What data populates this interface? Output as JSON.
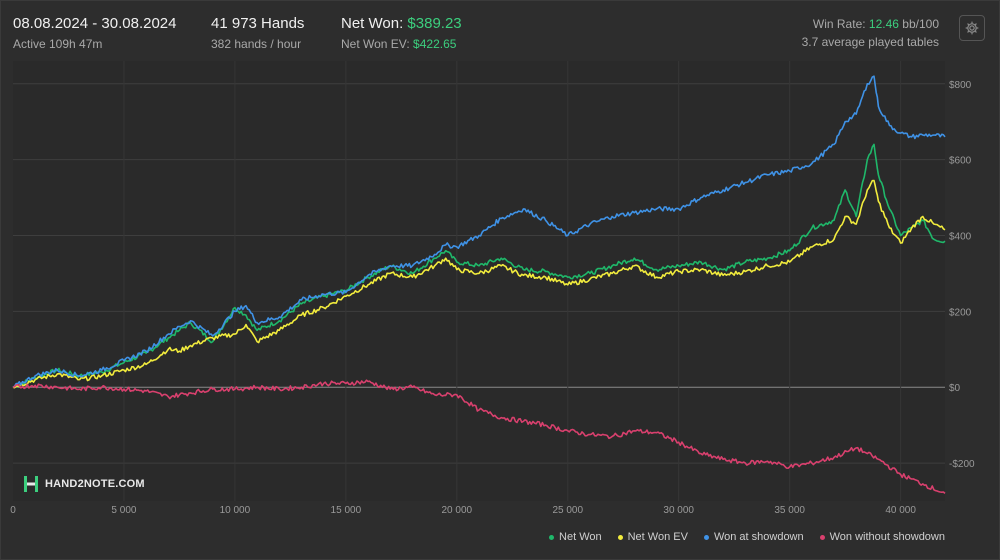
{
  "header": {
    "date_range": "08.08.2024 - 30.08.2024",
    "active": "Active 109h 47m",
    "hands": "41 973 Hands",
    "hands_per_hour": "382 hands / hour",
    "net_won_label": "Net Won:",
    "net_won_value": "$389.23",
    "net_won_ev_label": "Net Won  EV:",
    "net_won_ev_value": "$422.65",
    "win_rate_label": "Win Rate:",
    "win_rate_value": "12.46",
    "win_rate_unit": "bb/100",
    "tables": "3.7 average played tables"
  },
  "logo_text": "HAND2NOTE.COM",
  "icons": {
    "settings": "gear-icon",
    "logo": "hand2note-logo-icon"
  },
  "colors": {
    "background": "#2d2d2d",
    "net_won": "#1fb86a",
    "net_won_ev": "#f2ec3d",
    "won_showdown": "#3f92e6",
    "won_no_showdown": "#d9406e",
    "accent_green": "#3ccf7e"
  },
  "chart_data": {
    "type": "line",
    "title": "",
    "xlabel": "",
    "ylabel": "",
    "xlim": [
      0,
      42000
    ],
    "ylim": [
      -300,
      860
    ],
    "x_ticks": [
      0,
      5000,
      10000,
      15000,
      20000,
      25000,
      30000,
      35000,
      40000
    ],
    "x_tick_labels": [
      "0",
      "5 000",
      "10 000",
      "15 000",
      "20 000",
      "25 000",
      "30 000",
      "35 000",
      "40 000"
    ],
    "y_ticks": [
      -200,
      0,
      200,
      400,
      600,
      800
    ],
    "y_tick_labels": [
      "-$200",
      "$0",
      "$200",
      "$400",
      "$600",
      "$800"
    ],
    "grid": true,
    "legend_position": "bottom-right",
    "series": [
      {
        "name": "Net Won",
        "color": "#1fb86a",
        "x": [
          0,
          1000,
          2000,
          3000,
          4000,
          5000,
          6000,
          7000,
          7500,
          8000,
          9000,
          10000,
          10500,
          11000,
          12000,
          13000,
          14000,
          15000,
          16000,
          17000,
          18000,
          19000,
          19500,
          20000,
          21000,
          22000,
          23000,
          24000,
          25000,
          26000,
          27000,
          28000,
          29000,
          30000,
          31000,
          32000,
          33000,
          34000,
          35000,
          36000,
          37000,
          37500,
          38000,
          38500,
          38800,
          39000,
          39500,
          40000,
          40500,
          41000,
          41500,
          42000
        ],
        "y": [
          0,
          25,
          45,
          30,
          40,
          65,
          90,
          130,
          150,
          170,
          120,
          210,
          190,
          150,
          175,
          220,
          240,
          255,
          290,
          320,
          300,
          340,
          360,
          330,
          320,
          340,
          310,
          305,
          290,
          300,
          320,
          340,
          310,
          320,
          330,
          310,
          330,
          340,
          360,
          420,
          440,
          520,
          450,
          600,
          640,
          560,
          470,
          400,
          420,
          440,
          390,
          385
        ]
      },
      {
        "name": "Net Won  EV",
        "color": "#f2ec3d",
        "x": [
          0,
          1000,
          2000,
          3000,
          4000,
          5000,
          6000,
          7000,
          7500,
          8000,
          9000,
          10000,
          10500,
          11000,
          12000,
          13000,
          14000,
          15000,
          16000,
          17000,
          18000,
          19000,
          19500,
          20000,
          21000,
          22000,
          23000,
          24000,
          25000,
          26000,
          27000,
          28000,
          29000,
          30000,
          31000,
          32000,
          33000,
          34000,
          35000,
          36000,
          37000,
          37500,
          38000,
          38500,
          38800,
          39000,
          39500,
          40000,
          40500,
          41000,
          41500,
          42000
        ],
        "y": [
          0,
          20,
          35,
          20,
          30,
          45,
          60,
          100,
          95,
          110,
          130,
          140,
          165,
          120,
          150,
          190,
          210,
          240,
          270,
          300,
          290,
          320,
          340,
          310,
          300,
          320,
          295,
          290,
          270,
          285,
          300,
          320,
          290,
          305,
          310,
          295,
          305,
          320,
          330,
          370,
          390,
          450,
          430,
          520,
          545,
          490,
          420,
          380,
          420,
          450,
          430,
          415
        ]
      },
      {
        "name": "Won at showdown",
        "color": "#3f92e6",
        "x": [
          0,
          1000,
          2000,
          3000,
          4000,
          5000,
          6000,
          7000,
          7500,
          8000,
          9000,
          10000,
          10500,
          11000,
          12000,
          13000,
          14000,
          15000,
          16000,
          17000,
          18000,
          19000,
          19500,
          20000,
          21000,
          22000,
          23000,
          24000,
          25000,
          26000,
          27000,
          28000,
          29000,
          30000,
          31000,
          32000,
          33000,
          34000,
          35000,
          36000,
          37000,
          37500,
          38000,
          38500,
          38800,
          39000,
          39500,
          40000,
          40500,
          41000,
          41500,
          42000
        ],
        "y": [
          0,
          30,
          45,
          30,
          45,
          70,
          95,
          140,
          160,
          175,
          135,
          200,
          215,
          170,
          185,
          230,
          245,
          250,
          295,
          320,
          320,
          350,
          375,
          370,
          400,
          445,
          470,
          440,
          400,
          430,
          450,
          460,
          470,
          470,
          500,
          520,
          540,
          560,
          570,
          590,
          640,
          700,
          720,
          800,
          820,
          740,
          690,
          670,
          660,
          665,
          665,
          660
        ]
      },
      {
        "name": "Won without showdown",
        "color": "#d9406e",
        "x": [
          0,
          1000,
          2000,
          3000,
          4000,
          5000,
          6000,
          7000,
          8000,
          9000,
          10000,
          11000,
          12000,
          13000,
          14000,
          15000,
          16000,
          17000,
          18000,
          19000,
          20000,
          21000,
          22000,
          23000,
          24000,
          25000,
          26000,
          27000,
          28000,
          29000,
          30000,
          31000,
          32000,
          33000,
          34000,
          35000,
          36000,
          37000,
          38000,
          38500,
          39000,
          40000,
          41000,
          42000
        ],
        "y": [
          0,
          5,
          0,
          -5,
          0,
          -5,
          -10,
          -25,
          -15,
          -5,
          -5,
          0,
          -5,
          0,
          10,
          10,
          15,
          -5,
          0,
          -20,
          -20,
          -60,
          -80,
          -90,
          -100,
          -115,
          -125,
          -130,
          -115,
          -120,
          -145,
          -175,
          -190,
          -200,
          -195,
          -210,
          -200,
          -185,
          -160,
          -175,
          -190,
          -230,
          -255,
          -280
        ]
      }
    ]
  }
}
